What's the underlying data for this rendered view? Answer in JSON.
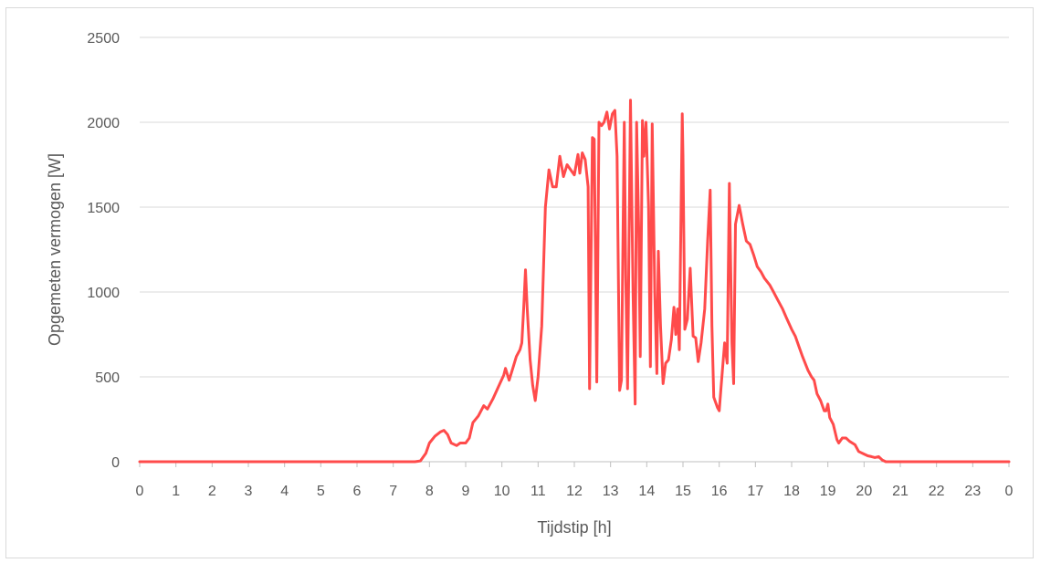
{
  "chart_data": {
    "type": "line",
    "xlabel": "Tijdstip [h]",
    "ylabel": "Opgemeten vermogen [W]",
    "ylim": [
      0,
      2500
    ],
    "y_ticks": [
      "0",
      "500",
      "1000",
      "1500",
      "2000",
      "2500"
    ],
    "x_tick_labels": [
      "0",
      "1",
      "2",
      "3",
      "4",
      "5",
      "6",
      "7",
      "8",
      "9",
      "10",
      "11",
      "12",
      "13",
      "14",
      "15",
      "16",
      "17",
      "18",
      "19",
      "20",
      "21",
      "22",
      "23",
      "0"
    ],
    "grid": "horizontal",
    "series": [
      {
        "color": "#ff4b4b",
        "points": [
          [
            0,
            0
          ],
          [
            7.6,
            0
          ],
          [
            7.75,
            5
          ],
          [
            7.9,
            50
          ],
          [
            8.0,
            110
          ],
          [
            8.15,
            150
          ],
          [
            8.3,
            175
          ],
          [
            8.4,
            185
          ],
          [
            8.5,
            160
          ],
          [
            8.6,
            110
          ],
          [
            8.75,
            95
          ],
          [
            8.85,
            110
          ],
          [
            9.0,
            110
          ],
          [
            9.1,
            140
          ],
          [
            9.2,
            230
          ],
          [
            9.35,
            270
          ],
          [
            9.5,
            330
          ],
          [
            9.6,
            310
          ],
          [
            9.75,
            370
          ],
          [
            9.9,
            440
          ],
          [
            10.05,
            510
          ],
          [
            10.1,
            550
          ],
          [
            10.2,
            480
          ],
          [
            10.3,
            550
          ],
          [
            10.4,
            620
          ],
          [
            10.5,
            660
          ],
          [
            10.55,
            700
          ],
          [
            10.6,
            900
          ],
          [
            10.65,
            1130
          ],
          [
            10.7,
            900
          ],
          [
            10.78,
            600
          ],
          [
            10.85,
            450
          ],
          [
            10.92,
            360
          ],
          [
            11.0,
            500
          ],
          [
            11.1,
            800
          ],
          [
            11.2,
            1500
          ],
          [
            11.3,
            1720
          ],
          [
            11.4,
            1620
          ],
          [
            11.5,
            1620
          ],
          [
            11.6,
            1800
          ],
          [
            11.7,
            1680
          ],
          [
            11.8,
            1750
          ],
          [
            11.9,
            1720
          ],
          [
            12.0,
            1690
          ],
          [
            12.1,
            1810
          ],
          [
            12.15,
            1700
          ],
          [
            12.22,
            1820
          ],
          [
            12.3,
            1780
          ],
          [
            12.38,
            1620
          ],
          [
            12.42,
            430
          ],
          [
            12.5,
            1910
          ],
          [
            12.55,
            1900
          ],
          [
            12.62,
            470
          ],
          [
            12.68,
            2000
          ],
          [
            12.75,
            1980
          ],
          [
            12.82,
            2000
          ],
          [
            12.9,
            2060
          ],
          [
            12.97,
            1960
          ],
          [
            13.05,
            2050
          ],
          [
            13.12,
            2070
          ],
          [
            13.18,
            1800
          ],
          [
            13.25,
            420
          ],
          [
            13.3,
            480
          ],
          [
            13.38,
            2000
          ],
          [
            13.42,
            1100
          ],
          [
            13.47,
            430
          ],
          [
            13.55,
            2130
          ],
          [
            13.62,
            1000
          ],
          [
            13.68,
            340
          ],
          [
            13.72,
            2000
          ],
          [
            13.78,
            1350
          ],
          [
            13.82,
            620
          ],
          [
            13.88,
            2010
          ],
          [
            13.92,
            1800
          ],
          [
            13.98,
            2000
          ],
          [
            14.05,
            1500
          ],
          [
            14.1,
            560
          ],
          [
            14.15,
            1990
          ],
          [
            14.22,
            1000
          ],
          [
            14.28,
            520
          ],
          [
            14.32,
            1240
          ],
          [
            14.38,
            800
          ],
          [
            14.45,
            460
          ],
          [
            14.52,
            580
          ],
          [
            14.6,
            600
          ],
          [
            14.68,
            720
          ],
          [
            14.75,
            910
          ],
          [
            14.8,
            750
          ],
          [
            14.85,
            900
          ],
          [
            14.9,
            660
          ],
          [
            14.98,
            2050
          ],
          [
            15.0,
            1800
          ],
          [
            15.05,
            780
          ],
          [
            15.12,
            840
          ],
          [
            15.2,
            1140
          ],
          [
            15.28,
            740
          ],
          [
            15.35,
            730
          ],
          [
            15.42,
            590
          ],
          [
            15.5,
            700
          ],
          [
            15.6,
            900
          ],
          [
            15.68,
            1300
          ],
          [
            15.75,
            1600
          ],
          [
            15.8,
            800
          ],
          [
            15.85,
            380
          ],
          [
            15.95,
            320
          ],
          [
            16.0,
            300
          ],
          [
            16.05,
            440
          ],
          [
            16.15,
            700
          ],
          [
            16.22,
            580
          ],
          [
            16.28,
            1640
          ],
          [
            16.35,
            700
          ],
          [
            16.4,
            460
          ],
          [
            16.45,
            1400
          ],
          [
            16.55,
            1510
          ],
          [
            16.65,
            1400
          ],
          [
            16.75,
            1300
          ],
          [
            16.85,
            1280
          ],
          [
            16.95,
            1220
          ],
          [
            17.05,
            1150
          ],
          [
            17.15,
            1120
          ],
          [
            17.25,
            1080
          ],
          [
            17.4,
            1040
          ],
          [
            17.5,
            1000
          ],
          [
            17.6,
            960
          ],
          [
            17.75,
            900
          ],
          [
            17.85,
            850
          ],
          [
            18.0,
            780
          ],
          [
            18.1,
            740
          ],
          [
            18.2,
            680
          ],
          [
            18.3,
            620
          ],
          [
            18.45,
            540
          ],
          [
            18.55,
            500
          ],
          [
            18.62,
            480
          ],
          [
            18.7,
            400
          ],
          [
            18.8,
            360
          ],
          [
            18.9,
            300
          ],
          [
            18.95,
            300
          ],
          [
            19.0,
            340
          ],
          [
            19.05,
            260
          ],
          [
            19.15,
            220
          ],
          [
            19.25,
            130
          ],
          [
            19.3,
            110
          ],
          [
            19.4,
            140
          ],
          [
            19.5,
            140
          ],
          [
            19.6,
            120
          ],
          [
            19.75,
            100
          ],
          [
            19.85,
            60
          ],
          [
            20.0,
            45
          ],
          [
            20.1,
            35
          ],
          [
            20.2,
            30
          ],
          [
            20.3,
            25
          ],
          [
            20.4,
            30
          ],
          [
            20.5,
            10
          ],
          [
            20.6,
            0
          ],
          [
            24.0,
            0
          ]
        ]
      }
    ]
  }
}
